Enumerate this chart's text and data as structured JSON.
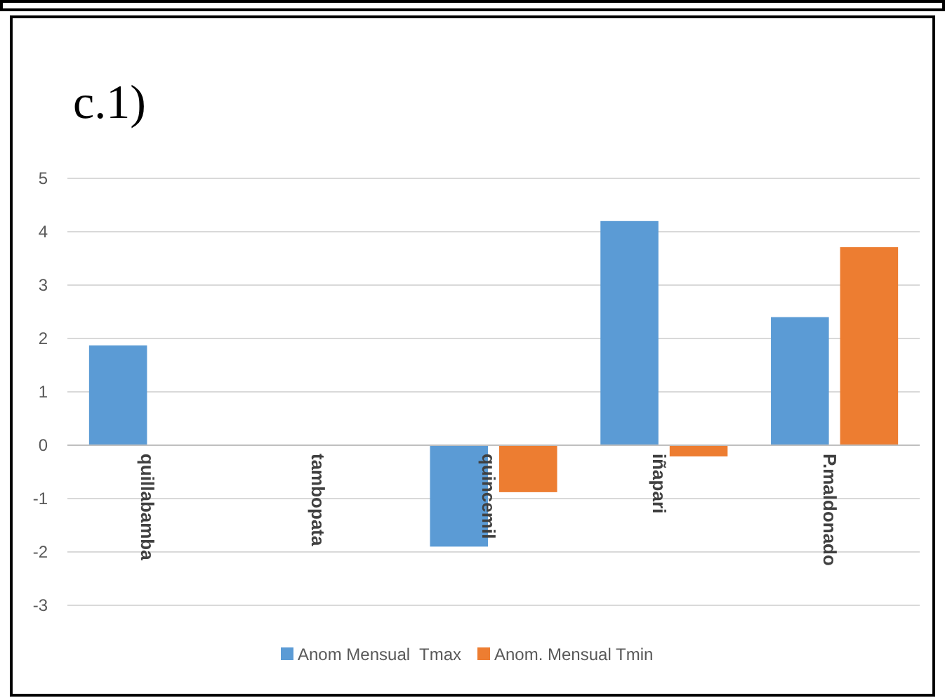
{
  "chart_data": {
    "type": "bar",
    "title": "c.1)",
    "categories": [
      "quillabamba",
      "tambopata",
      "quincemil",
      "iñapari",
      "P.maldonado"
    ],
    "series": [
      {
        "name": "Anom Mensual  Tmax",
        "color": "#5b9bd5",
        "values": [
          1.87,
          null,
          -1.9,
          4.2,
          2.4
        ]
      },
      {
        "name": "Anom. Mensual Tmin",
        "color": "#ed7d31",
        "values": [
          null,
          null,
          -0.88,
          -0.21,
          3.71
        ]
      }
    ],
    "ylim": [
      -3,
      5
    ],
    "yticks": [
      -3,
      -2,
      -1,
      0,
      1,
      2,
      3,
      4,
      5
    ],
    "grid": "y",
    "legend": "bottom"
  }
}
